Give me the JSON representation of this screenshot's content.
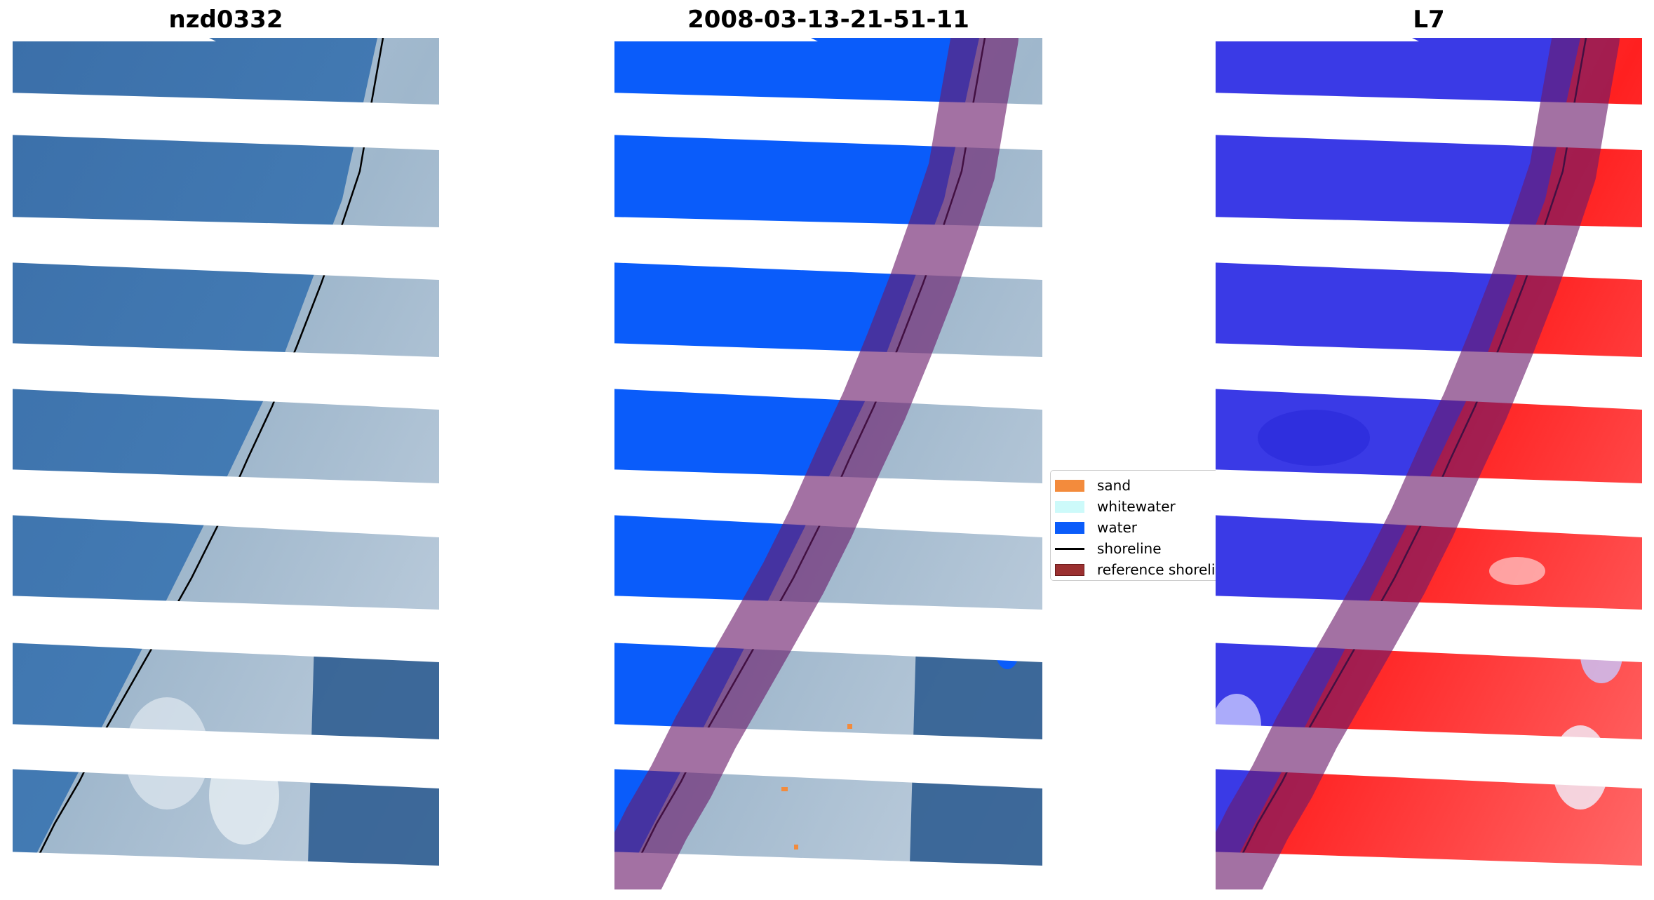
{
  "panels": [
    {
      "title": "nzd0332"
    },
    {
      "title": "2008-03-13-21-51-11"
    },
    {
      "title": "L7"
    }
  ],
  "legend": {
    "items": [
      {
        "label": "sand",
        "color": "#f38b3c",
        "kind": "patch"
      },
      {
        "label": "whitewater",
        "color": "#cdfafa",
        "kind": "patch"
      },
      {
        "label": "water",
        "color": "#0a5cfa",
        "kind": "patch"
      },
      {
        "label": "shoreline",
        "color": "#000000",
        "kind": "line"
      },
      {
        "label": "reference shoreline buffer",
        "color": "#9b3030",
        "kind": "patch"
      }
    ]
  },
  "colors": {
    "water_rgb": "#3f78b3",
    "land_rgb": "#9db8cc",
    "vegetation_rgb": "#2f5d91",
    "classified_water": "#0a5cfa",
    "index_water": "#3a3ae6",
    "index_land": "#ff2020",
    "buffer_overlay": "#7a1b6e",
    "scan_gap": "#ffffff"
  }
}
